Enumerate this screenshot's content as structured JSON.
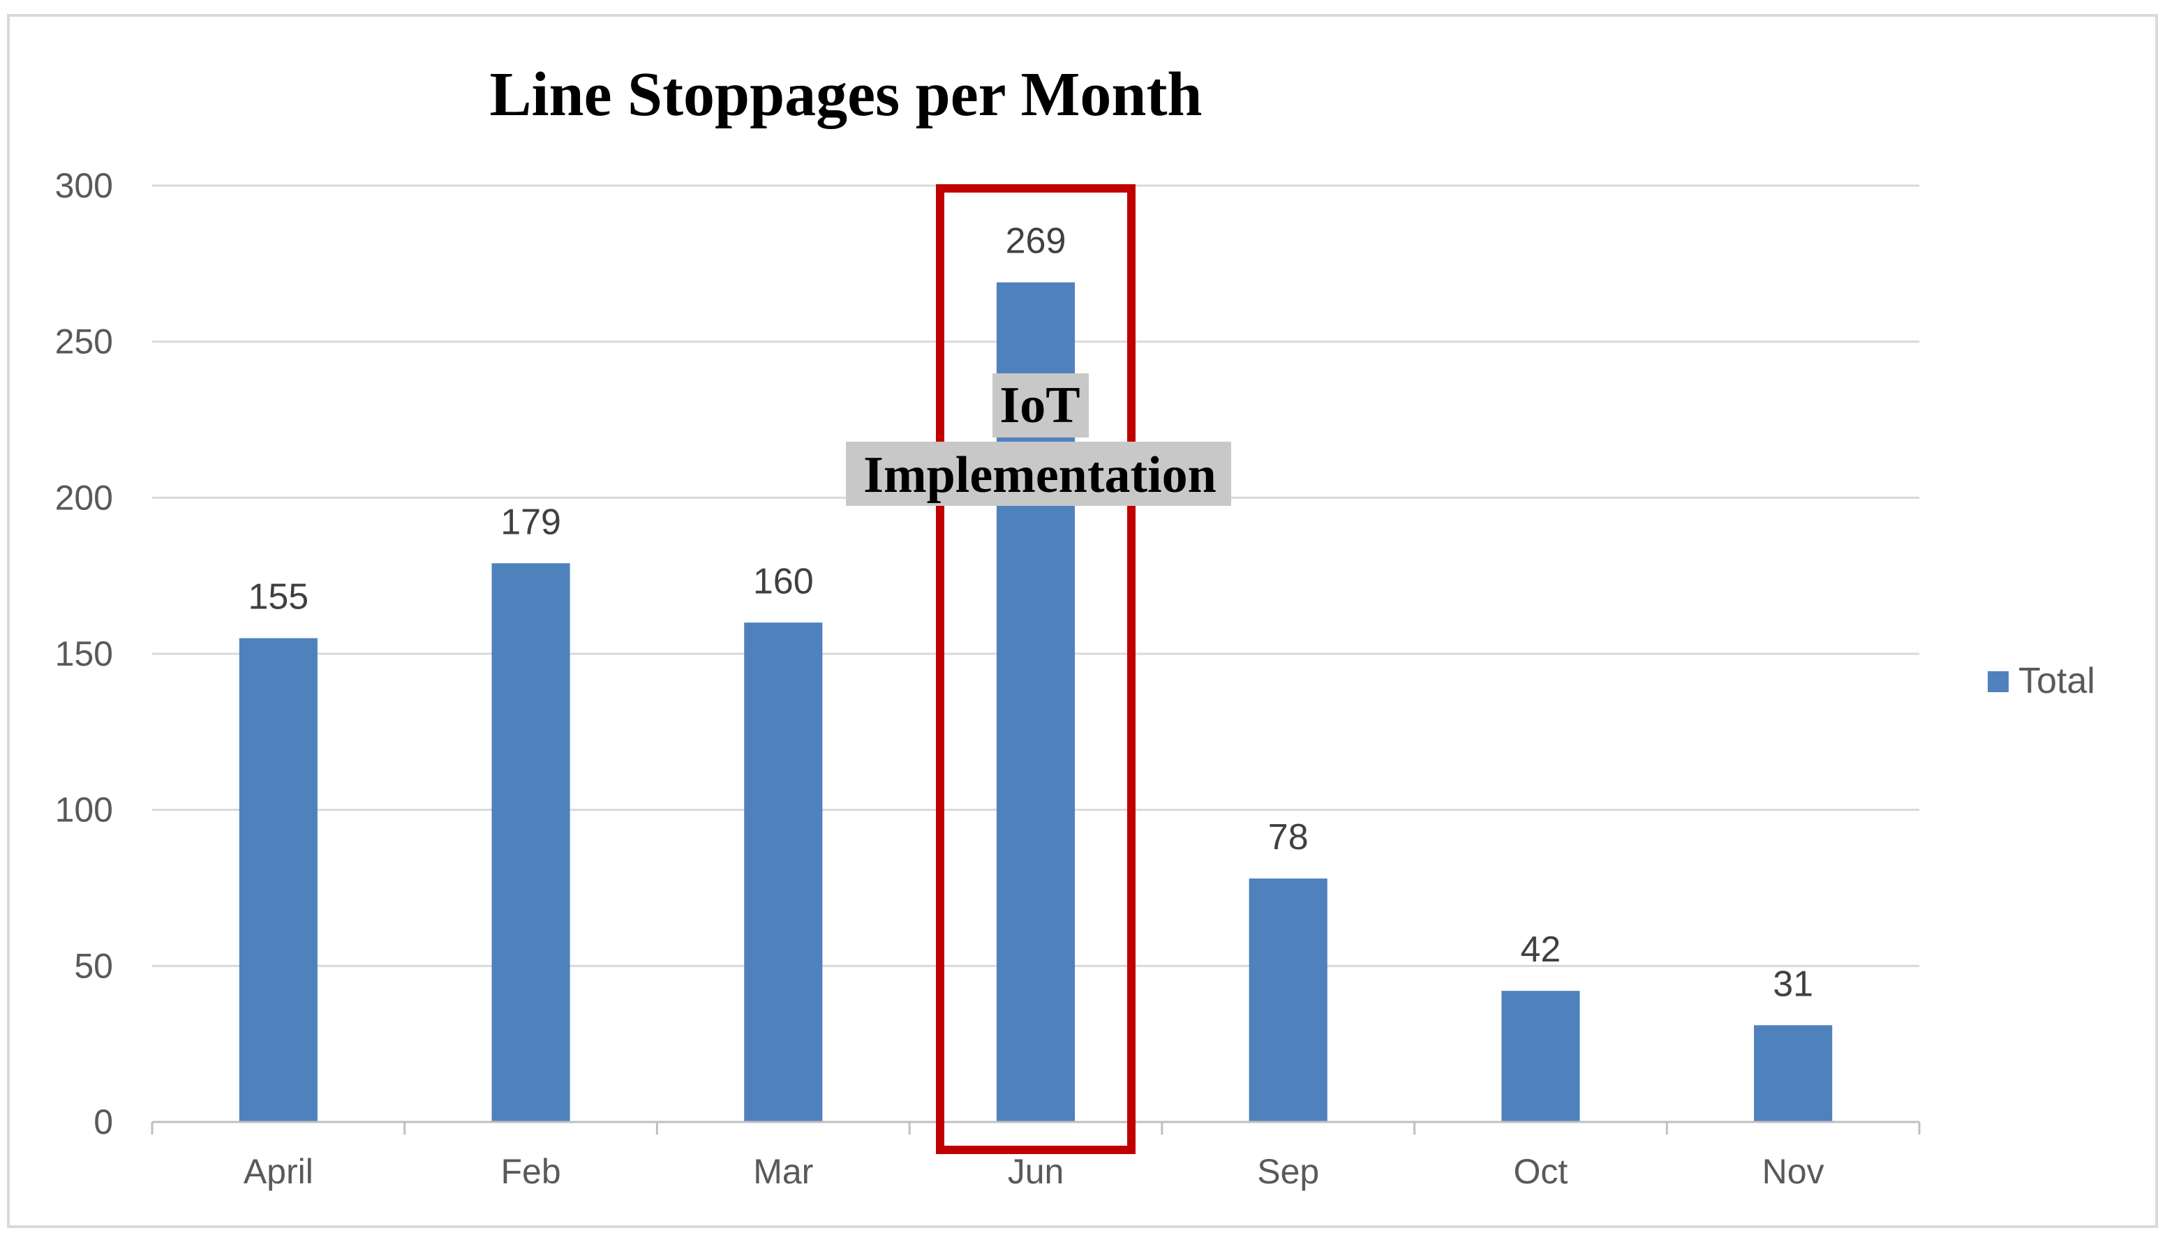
{
  "chart_data": {
    "type": "bar",
    "title": "Line Stoppages per Month",
    "categories": [
      "April",
      "Feb",
      "Mar",
      "Jun",
      "Sep",
      "Oct",
      "Nov"
    ],
    "series": [
      {
        "name": "Total",
        "values": [
          155,
          179,
          160,
          269,
          78,
          42,
          31
        ],
        "color": "#4F81BD"
      }
    ],
    "ylim": [
      0,
      300
    ],
    "yticks": [
      0,
      50,
      100,
      150,
      200,
      250,
      300
    ],
    "grid": true,
    "legend": "right",
    "data_labels": true,
    "annotation": {
      "lines": [
        "IoT",
        "Implementation"
      ],
      "highlight_category": "Jun",
      "highlight_color": "#C00000",
      "label_background": "#C8C8C8"
    }
  }
}
